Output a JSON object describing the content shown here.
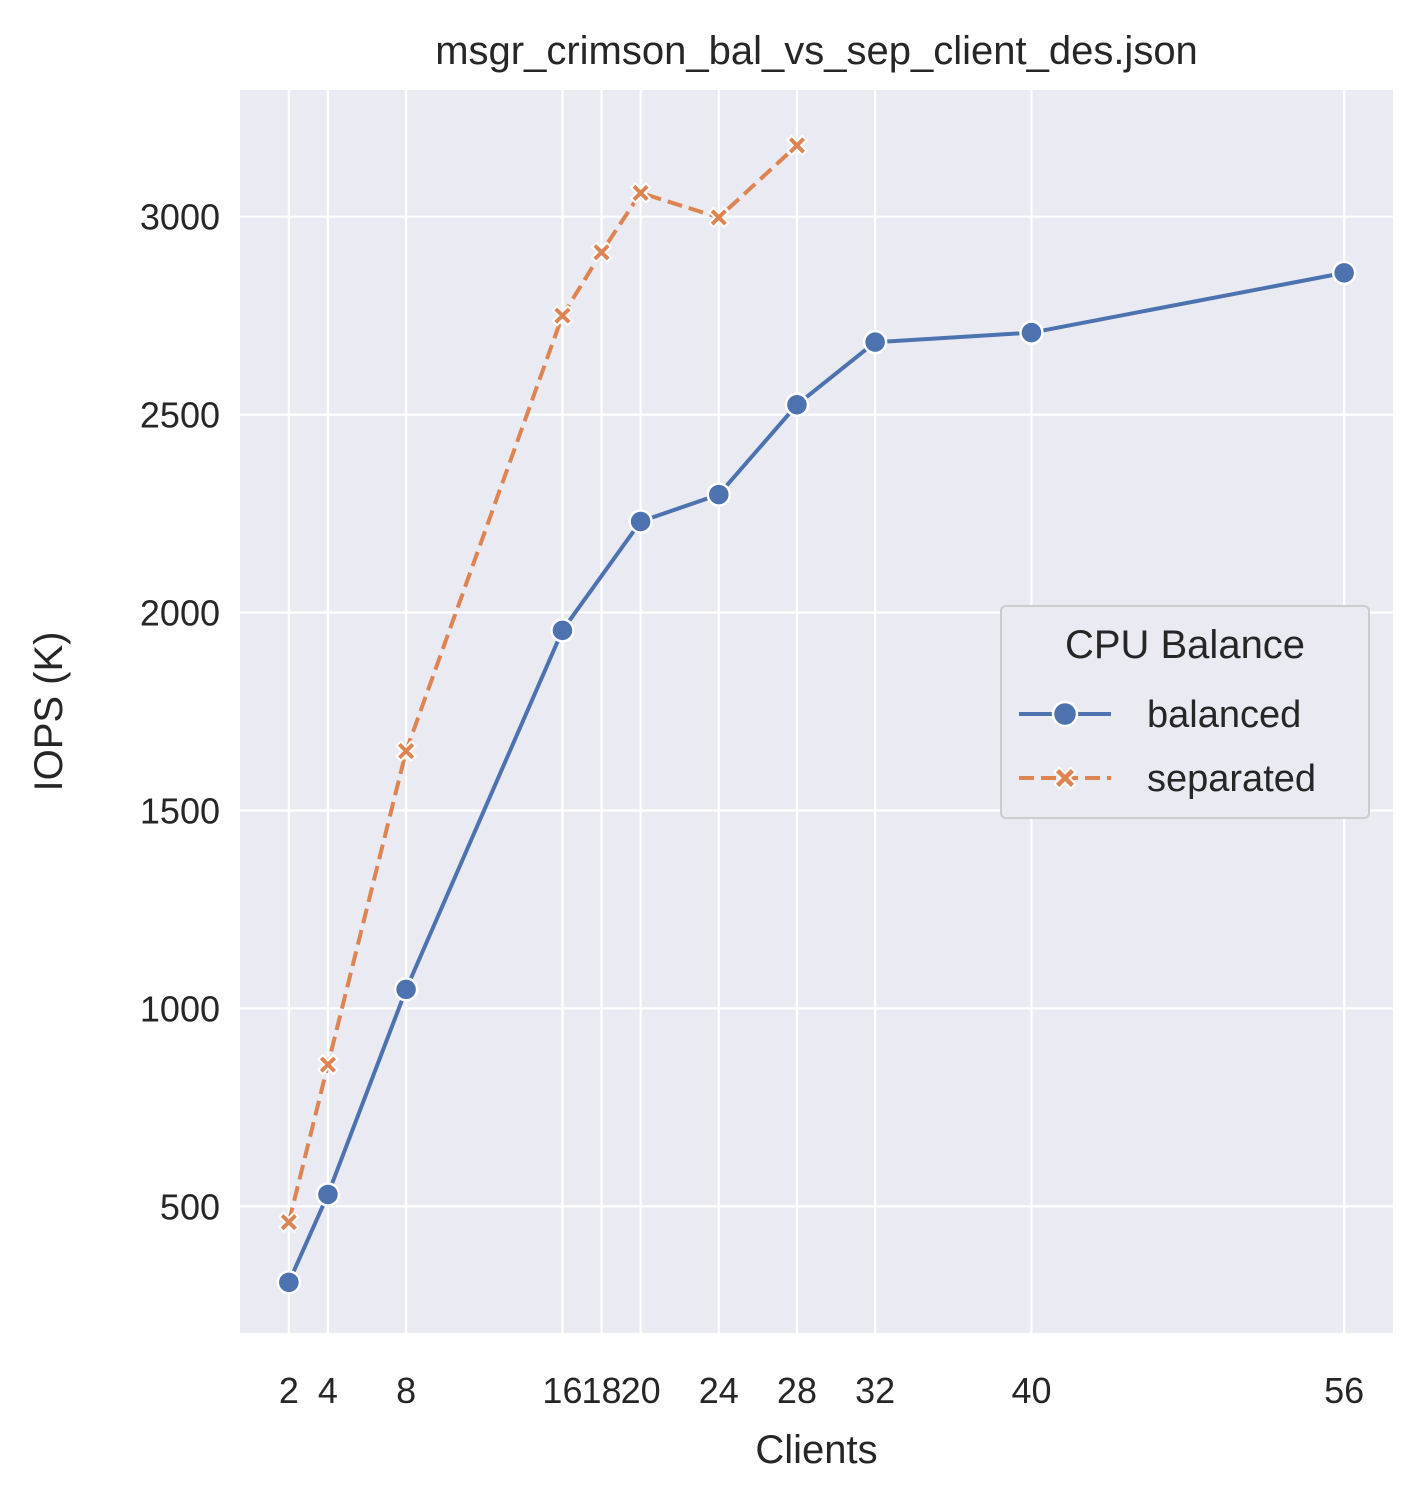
{
  "chart_data": {
    "type": "line",
    "title": "msgr_crimson_bal_vs_sep_client_des.json",
    "xlabel": "Clients",
    "ylabel": "IOPS (K)",
    "x_ticks": [
      2,
      4,
      8,
      16,
      18,
      20,
      24,
      28,
      32,
      40,
      56
    ],
    "y_ticks": [
      500,
      1000,
      1500,
      2000,
      2500,
      3000
    ],
    "xlim": [
      -0.5,
      58.5
    ],
    "ylim": [
      180,
      3320
    ],
    "grid": true,
    "legend": {
      "title": "CPU Balance",
      "placement": "center-right"
    },
    "series": [
      {
        "name": "balanced",
        "color": "#4c72b0",
        "marker": "circle",
        "dash": "solid",
        "x": [
          2,
          4,
          8,
          16,
          20,
          24,
          28,
          32,
          40,
          56
        ],
        "values": [
          308,
          530,
          1048,
          1955,
          2230,
          2298,
          2525,
          2683,
          2707,
          2858
        ]
      },
      {
        "name": "separated",
        "color": "#dd8452",
        "marker": "x",
        "dash": "dashed",
        "x": [
          2,
          4,
          8,
          16,
          18,
          20,
          24,
          28
        ],
        "values": [
          460,
          858,
          1650,
          2750,
          2910,
          3060,
          2998,
          3180
        ]
      }
    ]
  }
}
